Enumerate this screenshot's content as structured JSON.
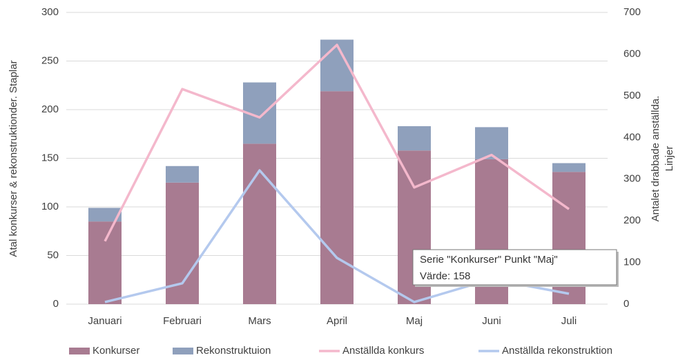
{
  "chart_data": {
    "type": "bar_line",
    "categories": [
      "Januari",
      "Februari",
      "Mars",
      "April",
      "Maj",
      "Juni",
      "Juli"
    ],
    "series": [
      {
        "name": "Konkurser",
        "color": "#a87b91",
        "type": "bar",
        "values": [
          85,
          125,
          165,
          219,
          158,
          149,
          136
        ]
      },
      {
        "name": "Rekonstruktuion",
        "color": "#8fa0bc",
        "type": "bar",
        "values": [
          14,
          17,
          63,
          53,
          25,
          33,
          9
        ]
      },
      {
        "name": "Anställda konkurs",
        "color": "#f4b8cc",
        "type": "line",
        "axis": "y2",
        "values": [
          151,
          516,
          448,
          622,
          280,
          358,
          228
        ]
      },
      {
        "name": "Anställda rekonstruktion",
        "color": "#b4c9ee",
        "type": "line",
        "axis": "y2",
        "values": [
          5,
          50,
          321,
          111,
          5,
          60,
          25
        ]
      }
    ],
    "ylabel": "Atal konkurser & rekonstruktionder. Staplar",
    "y2label": [
      "Antalet drabbade anställda.",
      "Linjer"
    ],
    "ylim": [
      0,
      300
    ],
    "yticks": [
      0,
      50,
      100,
      150,
      200,
      250,
      300
    ],
    "y2lim": [
      0,
      700
    ],
    "y2ticks": [
      0,
      100,
      200,
      300,
      400,
      500,
      600,
      700
    ],
    "stacked": true,
    "legend": "bottom",
    "tooltip": [
      "Serie \"Konkurser\" Punkt \"Maj\"",
      "Värde: 158"
    ]
  }
}
